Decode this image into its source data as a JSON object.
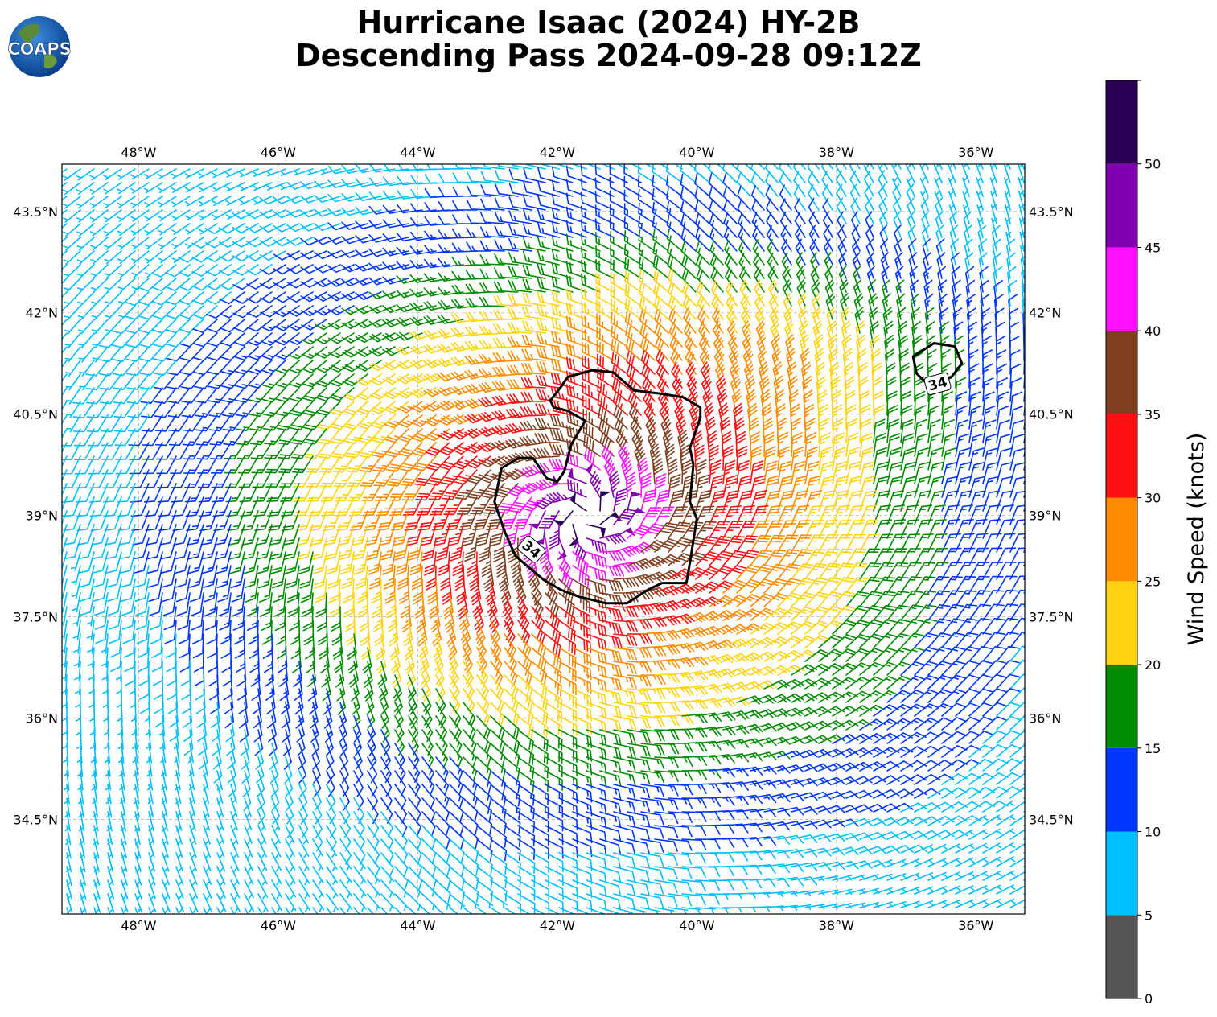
{
  "header": {
    "title_line1": "Hurricane Isaac (2024) HY-2B",
    "title_line2": "Descending Pass 2024-09-28 09:12Z",
    "logo_text": "COAPS"
  },
  "map": {
    "lon_range": [
      -49.1,
      -35.3
    ],
    "lat_range": [
      33.1,
      44.2
    ],
    "lon_ticks": [
      {
        "lon": -48,
        "label": "48°W"
      },
      {
        "lon": -46,
        "label": "46°W"
      },
      {
        "lon": -44,
        "label": "44°W"
      },
      {
        "lon": -42,
        "label": "42°W"
      },
      {
        "lon": -40,
        "label": "40°W"
      },
      {
        "lon": -38,
        "label": "38°W"
      },
      {
        "lon": -36,
        "label": "36°W"
      }
    ],
    "lat_ticks": [
      {
        "lat": 43.5,
        "label": "43.5°N"
      },
      {
        "lat": 42,
        "label": "42°N"
      },
      {
        "lat": 40.5,
        "label": "40.5°N"
      },
      {
        "lat": 39,
        "label": "39°N"
      },
      {
        "lat": 37.5,
        "label": "37.5°N"
      },
      {
        "lat": 36,
        "label": "36°N"
      },
      {
        "lat": 34.5,
        "label": "34.5°N"
      }
    ],
    "grid": true,
    "storm_center": {
      "lon": -41.6,
      "lat": 39.0
    },
    "contour_label": "34",
    "contour_34kt_main": [
      [
        -41.5,
        41.15
      ],
      [
        -41.2,
        41.12
      ],
      [
        -40.9,
        40.85
      ],
      [
        -40.5,
        40.8
      ],
      [
        -40.2,
        40.75
      ],
      [
        -39.95,
        40.6
      ],
      [
        -39.95,
        40.45
      ],
      [
        -40.1,
        40.0
      ],
      [
        -40.05,
        39.75
      ],
      [
        -40.1,
        39.2
      ],
      [
        -40.0,
        38.95
      ],
      [
        -40.1,
        38.3
      ],
      [
        -40.15,
        38.0
      ],
      [
        -40.5,
        38.0
      ],
      [
        -40.7,
        37.9
      ],
      [
        -41.0,
        37.7
      ],
      [
        -41.3,
        37.7
      ],
      [
        -41.7,
        37.8
      ],
      [
        -41.95,
        37.9
      ],
      [
        -42.2,
        38.05
      ],
      [
        -42.6,
        38.4
      ],
      [
        -42.75,
        38.75
      ],
      [
        -42.9,
        39.2
      ],
      [
        -42.8,
        39.7
      ],
      [
        -42.55,
        39.85
      ],
      [
        -42.35,
        39.85
      ],
      [
        -42.15,
        39.55
      ],
      [
        -42.0,
        39.5
      ],
      [
        -41.9,
        39.65
      ],
      [
        -41.8,
        40.05
      ],
      [
        -41.6,
        40.4
      ],
      [
        -41.85,
        40.55
      ],
      [
        -42.05,
        40.6
      ],
      [
        -42.1,
        40.7
      ],
      [
        -41.95,
        40.9
      ],
      [
        -41.85,
        41.05
      ],
      [
        -41.5,
        41.15
      ]
    ],
    "contour_34kt_ne": [
      [
        -36.9,
        41.35
      ],
      [
        -36.6,
        41.55
      ],
      [
        -36.3,
        41.5
      ],
      [
        -36.2,
        41.25
      ],
      [
        -36.35,
        41.05
      ],
      [
        -36.7,
        40.95
      ],
      [
        -36.85,
        41.1
      ],
      [
        -36.9,
        41.35
      ]
    ]
  },
  "colorbar": {
    "label": "Wind Speed (knots)",
    "ticks": [
      "0",
      "5",
      "10",
      "15",
      "20",
      "25",
      "30",
      "35",
      "40",
      "45",
      "50"
    ],
    "bins": [
      {
        "min": 0,
        "max": 5,
        "color": "#565656"
      },
      {
        "min": 5,
        "max": 10,
        "color": "#00bfff"
      },
      {
        "min": 10,
        "max": 15,
        "color": "#0036ff"
      },
      {
        "min": 15,
        "max": 20,
        "color": "#008c00"
      },
      {
        "min": 20,
        "max": 25,
        "color": "#ffd30f"
      },
      {
        "min": 25,
        "max": 30,
        "color": "#ff8c00"
      },
      {
        "min": 30,
        "max": 35,
        "color": "#ff0f0f"
      },
      {
        "min": 35,
        "max": 40,
        "color": "#7f3f1f"
      },
      {
        "min": 40,
        "max": 45,
        "color": "#ff0fff"
      },
      {
        "min": 45,
        "max": 50,
        "color": "#8000b0"
      },
      {
        "min": 50,
        "max": 55,
        "color": "#2a0055"
      }
    ]
  }
}
